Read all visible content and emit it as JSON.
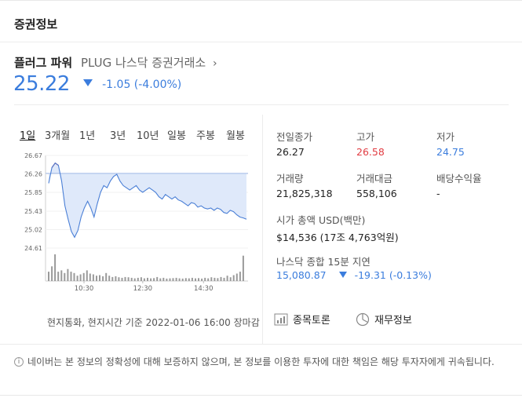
{
  "header": {
    "title": "증권정보"
  },
  "stock": {
    "name": "플러그 파워",
    "meta": "PLUG 나스닥 증권거래소",
    "arrow": "›",
    "price": "25.22",
    "change": "-1.05 (-4.00%)",
    "price_color": "#3b7ddd"
  },
  "tabs": [
    "1일",
    "3개월",
    "1년",
    "3년",
    "10년",
    "일봉",
    "주봉",
    "월봉"
  ],
  "stats": {
    "prev_close_label": "전일종가",
    "prev_close": "26.27",
    "high_label": "고가",
    "high": "26.58",
    "low_label": "저가",
    "low": "24.75",
    "volume_label": "거래량",
    "volume": "21,825,318",
    "amount_label": "거래대금",
    "amount": "558,106",
    "dividend_label": "배당수익율",
    "dividend": "-",
    "mcap_label": "시가 총액 USD(백만)",
    "mcap": "$14,536 (17조 4,763억원)"
  },
  "index": {
    "label": "나스닥 종합 15분 지연",
    "value": "15,080.87",
    "change": "-19.31 (-0.13%)"
  },
  "links": {
    "discussion": "종목토론",
    "financials": "재무정보"
  },
  "footnote": "현지통화, 현지시간 기준 2022-01-06 16:00 장마감",
  "disclaimer": "네이버는 본 정보의 정확성에 대해 보증하지 않으며, 본 정보를 이용한 투자에 대한 책임은 해당 투자자에게 귀속됩니다.",
  "chart_data": {
    "type": "line",
    "y_ticks": [
      "26.67",
      "26.26",
      "25.85",
      "25.43",
      "25.02",
      "24.61"
    ],
    "x_ticks": [
      "10:30",
      "12:30",
      "14:30"
    ],
    "ylim": [
      24.61,
      26.67
    ],
    "reference_price": 26.27,
    "line_color": "#4a7fd6",
    "fill_color": "#dfe9fa",
    "above_color": "#e23d43",
    "series": [
      26.05,
      26.4,
      26.5,
      26.45,
      26.1,
      25.55,
      25.25,
      24.98,
      24.85,
      25.0,
      25.3,
      25.5,
      25.65,
      25.5,
      25.3,
      25.6,
      25.85,
      26.0,
      25.95,
      26.1,
      26.2,
      26.25,
      26.1,
      26.0,
      25.95,
      25.9,
      25.95,
      26.0,
      25.9,
      25.85,
      25.9,
      25.95,
      25.9,
      25.85,
      25.75,
      25.7,
      25.8,
      25.75,
      25.7,
      25.75,
      25.68,
      25.65,
      25.6,
      25.55,
      25.62,
      25.6,
      25.52,
      25.55,
      25.5,
      25.48,
      25.5,
      25.45,
      25.5,
      25.47,
      25.4,
      25.38,
      25.45,
      25.42,
      25.35,
      25.3,
      25.28,
      25.25
    ],
    "volume": [
      0.35,
      0.55,
      1.0,
      0.35,
      0.4,
      0.3,
      0.45,
      0.35,
      0.3,
      0.2,
      0.25,
      0.3,
      0.4,
      0.28,
      0.25,
      0.2,
      0.22,
      0.18,
      0.3,
      0.2,
      0.15,
      0.18,
      0.14,
      0.12,
      0.15,
      0.14,
      0.12,
      0.1,
      0.12,
      0.14,
      0.1,
      0.12,
      0.1,
      0.11,
      0.15,
      0.1,
      0.12,
      0.09,
      0.1,
      0.11,
      0.12,
      0.1,
      0.09,
      0.11,
      0.1,
      0.12,
      0.1,
      0.11,
      0.09,
      0.12,
      0.1,
      0.14,
      0.12,
      0.11,
      0.15,
      0.12,
      0.2,
      0.14,
      0.22,
      0.28,
      0.35,
      0.95
    ]
  }
}
